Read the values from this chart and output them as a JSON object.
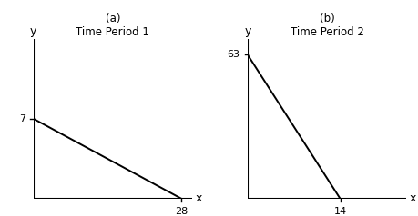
{
  "panel_a": {
    "title_line1": "(a)",
    "title_line2": "Time Period 1",
    "x_intercept": 28,
    "y_intercept": 7,
    "xlabel": "x",
    "ylabel": "y",
    "x_tick_label": "28",
    "y_tick_label": "7",
    "xlim": [
      0,
      30
    ],
    "ylim": [
      0,
      14
    ]
  },
  "panel_b": {
    "title_line1": "(b)",
    "title_line2": "Time Period 2",
    "x_intercept": 14,
    "y_intercept": 63,
    "xlabel": "x",
    "ylabel": "y",
    "x_tick_label": "14",
    "y_tick_label": "63",
    "xlim": [
      0,
      24
    ],
    "ylim": [
      0,
      70
    ]
  },
  "line_color": "#000000",
  "axis_color": "#000000",
  "background_color": "#ffffff",
  "fontsize_title": 8.5,
  "fontsize_tick": 8,
  "fontsize_axlabel": 9
}
